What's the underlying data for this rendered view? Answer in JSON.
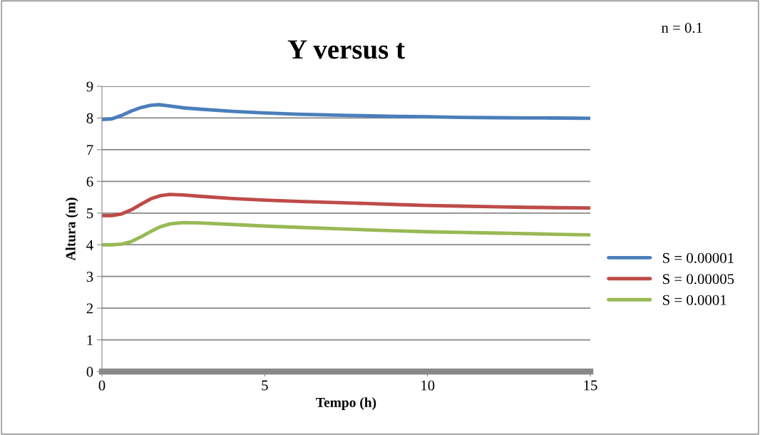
{
  "chart_data": {
    "type": "line",
    "title": "Y versus t",
    "xlabel": "Tempo (h)",
    "ylabel": "Altura (m)",
    "annotations": [
      "n = 0.1"
    ],
    "xlim": [
      0,
      15
    ],
    "xticks": [
      0,
      5,
      10,
      15
    ],
    "ylim": [
      0,
      9
    ],
    "yticks": [
      0,
      1,
      2,
      3,
      4,
      5,
      6,
      7,
      8,
      9
    ],
    "grid": "y",
    "legend": "right",
    "marker": "none",
    "line_style": "solid",
    "series": [
      {
        "name": "S = 0.00001",
        "color": "#4a7ebb",
        "x": [
          0,
          0.3,
          0.6,
          0.9,
          1.2,
          1.5,
          1.75,
          2.0,
          2.5,
          3,
          4,
          5,
          6,
          7.6,
          9,
          10,
          11,
          12,
          13,
          14,
          15
        ],
        "values": [
          7.95,
          7.97,
          8.08,
          8.22,
          8.33,
          8.4,
          8.42,
          8.39,
          8.32,
          8.28,
          8.21,
          8.16,
          8.12,
          8.08,
          8.05,
          8.04,
          8.02,
          8.01,
          8.0,
          8.0,
          7.99
        ]
      },
      {
        "name": "S = 0.00005",
        "color": "#be4b48",
        "x": [
          0,
          0.3,
          0.6,
          0.9,
          1.2,
          1.5,
          1.8,
          2.08,
          2.5,
          3,
          4,
          5,
          6,
          7.6,
          9,
          10,
          11,
          12,
          13,
          14,
          15
        ],
        "values": [
          4.92,
          4.92,
          4.97,
          5.1,
          5.28,
          5.45,
          5.55,
          5.59,
          5.57,
          5.53,
          5.46,
          5.41,
          5.37,
          5.32,
          5.27,
          5.24,
          5.22,
          5.2,
          5.18,
          5.17,
          5.16
        ]
      },
      {
        "name": "S = 0.0001",
        "color": "#98b954",
        "x": [
          0,
          0.3,
          0.6,
          0.9,
          1.2,
          1.5,
          1.8,
          2.1,
          2.5,
          3,
          4,
          5,
          6,
          7.6,
          9,
          10,
          11,
          12,
          13,
          14,
          15
        ],
        "values": [
          4.0,
          4.0,
          4.02,
          4.1,
          4.25,
          4.42,
          4.57,
          4.66,
          4.7,
          4.69,
          4.64,
          4.59,
          4.55,
          4.49,
          4.44,
          4.41,
          4.39,
          4.37,
          4.35,
          4.33,
          4.31
        ]
      }
    ]
  }
}
